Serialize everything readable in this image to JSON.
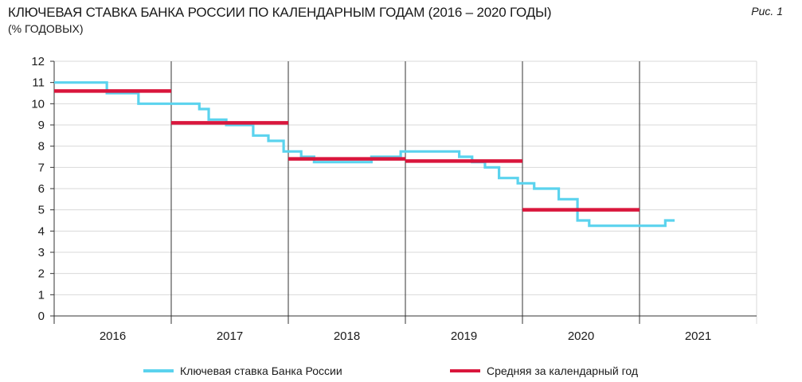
{
  "header": {
    "title": "КЛЮЧЕВАЯ СТАВКА БАНКА РОССИИ ПО КАЛЕНДАРНЫМ ГОДАМ (2016 – 2020 ГОДЫ)",
    "subtitle": "(% ГОДОВЫХ)",
    "figure_label": "Рис. 1"
  },
  "chart_data": {
    "type": "line",
    "title": "КЛЮЧЕВАЯ СТАВКА БАНКА РОССИИ ПО КАЛЕНДАРНЫМ ГОДАМ (2016 – 2020 ГОДЫ)",
    "subtitle": "(% ГОДОВЫХ)",
    "xlabel": "",
    "ylabel": "",
    "x_categories": [
      "2016",
      "2017",
      "2018",
      "2019",
      "2020",
      "2021"
    ],
    "x_range": [
      2016,
      2022
    ],
    "ylim": [
      0,
      12
    ],
    "yticks": [
      "0",
      "1",
      "2",
      "3",
      "4",
      "5",
      "6",
      "7",
      "8",
      "9",
      "10",
      "11",
      "12"
    ],
    "grid": true,
    "legend_position": "bottom",
    "series": [
      {
        "name": "Ключевая ставка Банка России",
        "color": "#5bd3ee",
        "step": true,
        "points": [
          [
            2016.0,
            11.0
          ],
          [
            2016.45,
            10.5
          ],
          [
            2016.72,
            10.0
          ],
          [
            2017.24,
            9.75
          ],
          [
            2017.32,
            9.25
          ],
          [
            2017.47,
            9.0
          ],
          [
            2017.7,
            8.5
          ],
          [
            2017.83,
            8.25
          ],
          [
            2017.96,
            7.75
          ],
          [
            2018.11,
            7.5
          ],
          [
            2018.22,
            7.25
          ],
          [
            2018.71,
            7.5
          ],
          [
            2018.96,
            7.75
          ],
          [
            2019.46,
            7.5
          ],
          [
            2019.57,
            7.25
          ],
          [
            2019.68,
            7.0
          ],
          [
            2019.8,
            6.5
          ],
          [
            2019.96,
            6.25
          ],
          [
            2020.1,
            6.0
          ],
          [
            2020.31,
            5.5
          ],
          [
            2020.47,
            4.5
          ],
          [
            2020.57,
            4.25
          ],
          [
            2021.22,
            4.5
          ],
          [
            2021.3,
            4.5
          ]
        ]
      },
      {
        "name": "Средняя за календарный год",
        "color": "#d9163c",
        "step": false,
        "segments": [
          {
            "from": 2016,
            "to": 2017,
            "value": 10.6
          },
          {
            "from": 2017,
            "to": 2018,
            "value": 9.1
          },
          {
            "from": 2018,
            "to": 2019,
            "value": 7.4
          },
          {
            "from": 2019,
            "to": 2020,
            "value": 7.3
          },
          {
            "from": 2020,
            "to": 2021,
            "value": 5.0
          }
        ]
      }
    ]
  },
  "legend": {
    "items": [
      {
        "label": "Ключевая ставка Банка России",
        "color": "#5bd3ee"
      },
      {
        "label": "Средняя за календарный год",
        "color": "#d9163c"
      }
    ]
  }
}
